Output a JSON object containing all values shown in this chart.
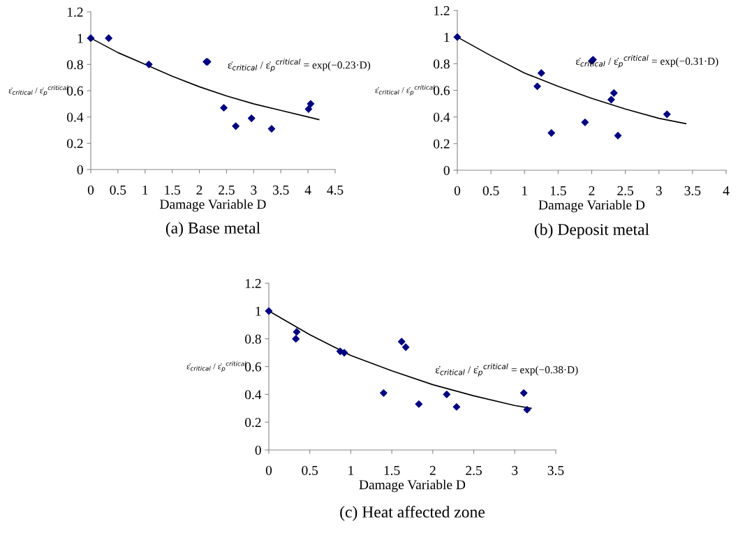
{
  "chart_data": [
    {
      "type": "scatter",
      "xlabel": "Damage Variable D",
      "ylabel": "ε̇$_{critical}$ / ε̇$_{p}$$^{critical}$",
      "xlim": [
        0,
        4.5
      ],
      "ylim": [
        0,
        1.2
      ],
      "xticks": [
        0,
        0.5,
        1,
        1.5,
        2,
        2.5,
        3,
        3.5,
        4,
        4.5
      ],
      "yticks": [
        0,
        0.2,
        0.4,
        0.6,
        0.8,
        1,
        1.2
      ],
      "grid": false,
      "legend": false,
      "marker": "diamond",
      "annotations": [
        "ε̇$_{critical}$ / ε̇$_{p}$$^{critical}$ = exp(−0.23·D)",
        "(a) Base metal"
      ],
      "series": [
        {
          "color": "#000080",
          "x": [
            0,
            0.33,
            1.07,
            2.13,
            2.15,
            2.45,
            2.67,
            2.96,
            3.33,
            4.01,
            4.05
          ],
          "values": [
            1,
            1.0,
            0.8,
            0.82,
            0.82,
            0.47,
            0.33,
            0.39,
            0.31,
            0.46,
            0.5
          ]
        },
        {
          "type": "line",
          "color": "#000000",
          "line_style": "solid",
          "marker": "none",
          "x": [
            0,
            0.5,
            1,
            1.5,
            2,
            2.5,
            3,
            3.5,
            4,
            4.2
          ],
          "values": [
            1,
            0.89,
            0.8,
            0.71,
            0.63,
            0.56,
            0.5,
            0.45,
            0.4,
            0.38
          ]
        }
      ]
    },
    {
      "type": "scatter",
      "xlabel": "Damage Variable D",
      "ylabel": "ε̇$_{critical}$ / ε̇$_{p}$$^{critical}$",
      "xlim": [
        0,
        4
      ],
      "ylim": [
        0,
        1.2
      ],
      "xticks": [
        0,
        0.5,
        1,
        1.5,
        2,
        2.5,
        3,
        3.5,
        4
      ],
      "yticks": [
        0,
        0.2,
        0.4,
        0.6,
        0.8,
        1,
        1.2
      ],
      "grid": false,
      "legend": false,
      "marker": "diamond",
      "annotations": [
        "ε̇$_{critical}$ / ε̇$_{p}$$^{critical}$ = exp(−0.31·D)",
        "(b) Deposit metal"
      ],
      "series": [
        {
          "color": "#000080",
          "x": [
            0,
            1.19,
            1.25,
            1.4,
            1.9,
            2.0,
            2.02,
            2.29,
            2.33,
            2.39,
            3.12
          ],
          "values": [
            1,
            0.63,
            0.73,
            0.28,
            0.36,
            0.82,
            0.83,
            0.53,
            0.58,
            0.26,
            0.42
          ]
        },
        {
          "type": "line",
          "color": "#000000",
          "line_style": "solid",
          "marker": "none",
          "x": [
            0,
            0.5,
            1,
            1.5,
            2,
            2.5,
            3,
            3.4
          ],
          "values": [
            1,
            0.86,
            0.73,
            0.63,
            0.54,
            0.46,
            0.39,
            0.35
          ]
        }
      ]
    },
    {
      "type": "scatter",
      "xlabel": "Damage Variable D",
      "ylabel": "ε̇$_{critical}$ / ε̇$_{p}$$^{critical}$",
      "xlim": [
        0,
        3.5
      ],
      "ylim": [
        0,
        1.2
      ],
      "xticks": [
        0,
        0.5,
        1,
        1.5,
        2,
        2.5,
        3,
        3.5
      ],
      "yticks": [
        0,
        0.2,
        0.4,
        0.6,
        0.8,
        1,
        1.2
      ],
      "grid": false,
      "legend": false,
      "marker": "diamond",
      "annotations": [
        "ε̇$_{critical}$ / ε̇$_{p}$$^{critical}$ = exp(−0.38·D)",
        "(c) Heat affected zone"
      ],
      "series": [
        {
          "color": "#000080",
          "x": [
            0,
            0.33,
            0.34,
            0.87,
            0.92,
            1.4,
            1.62,
            1.67,
            1.83,
            2.17,
            2.29,
            3.11,
            3.15
          ],
          "values": [
            1,
            0.8,
            0.85,
            0.71,
            0.7,
            0.41,
            0.78,
            0.74,
            0.33,
            0.4,
            0.31,
            0.41,
            0.29
          ]
        },
        {
          "type": "line",
          "color": "#000000",
          "line_style": "solid",
          "marker": "none",
          "x": [
            0,
            0.5,
            1,
            1.5,
            2,
            2.5,
            3,
            3.2
          ],
          "values": [
            1,
            0.83,
            0.68,
            0.57,
            0.47,
            0.39,
            0.32,
            0.3
          ]
        }
      ]
    }
  ]
}
